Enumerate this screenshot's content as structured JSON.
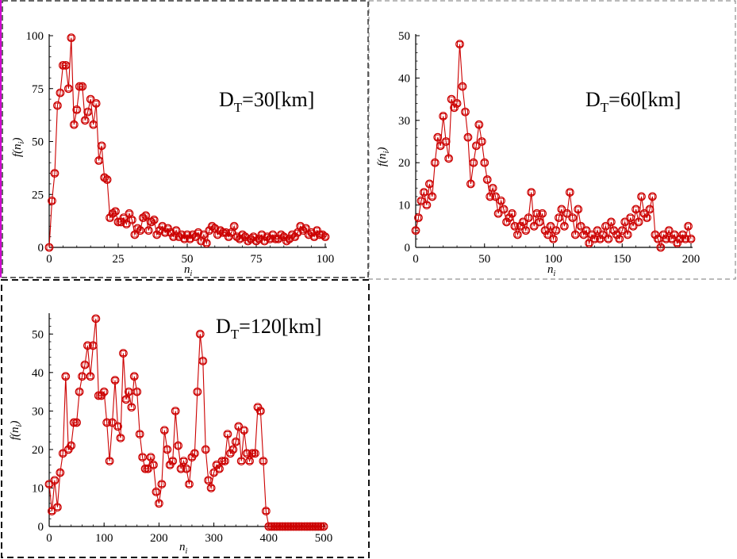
{
  "colors": {
    "series": "#cc0000",
    "frame_dash": "#555555",
    "frame_dash_dark": "#111111",
    "magenta_edge": "#d000d0"
  },
  "chart_data": [
    {
      "type": "line",
      "label_main": "D",
      "label_sub": "T",
      "label_rest": "=30[km]",
      "xlabel": "n",
      "xlabel_sub": "i",
      "ylabel_pre": "f(n",
      "ylabel_sub": "i",
      "ylabel_post": ")",
      "xlim": [
        0,
        100
      ],
      "ylim": [
        0,
        100
      ],
      "xticks": [
        0,
        25,
        50,
        75,
        100
      ],
      "yticks": [
        0,
        25,
        50,
        75,
        100
      ],
      "series": [
        {
          "marker": "circle-square",
          "x": [
            0,
            1,
            2,
            3,
            4,
            5,
            6,
            7,
            8,
            9,
            10,
            11,
            12,
            13,
            14,
            15,
            16,
            17,
            18,
            19,
            20,
            21,
            22,
            23,
            24,
            25,
            26,
            27,
            28,
            29,
            30,
            31,
            32,
            33,
            34,
            35,
            36,
            37,
            38,
            39,
            40,
            41,
            42,
            43,
            44,
            45,
            46,
            47,
            48,
            49,
            50,
            51,
            52,
            53,
            54,
            55,
            56,
            57,
            58,
            59,
            60,
            61,
            62,
            63,
            64,
            65,
            66,
            67,
            68,
            69,
            70,
            71,
            72,
            73,
            74,
            75,
            76,
            77,
            78,
            79,
            80,
            81,
            82,
            83,
            84,
            85,
            86,
            87,
            88,
            89,
            90,
            91,
            92,
            93,
            94,
            95,
            96,
            97,
            98,
            99,
            100
          ],
          "y": [
            0,
            22,
            35,
            67,
            73,
            86,
            86,
            75,
            99,
            58,
            65,
            76,
            76,
            60,
            64,
            70,
            58,
            68,
            41,
            48,
            33,
            32,
            14,
            16,
            17,
            12,
            12,
            14,
            11,
            16,
            13,
            6,
            9,
            8,
            14,
            15,
            8,
            12,
            13,
            6,
            8,
            10,
            7,
            9,
            7,
            5,
            8,
            5,
            6,
            4,
            6,
            4,
            6,
            5,
            7,
            3,
            6,
            2,
            8,
            10,
            9,
            6,
            8,
            7,
            7,
            5,
            7,
            10,
            5,
            4,
            6,
            5,
            3,
            4,
            5,
            3,
            4,
            6,
            3,
            5,
            4,
            6,
            4,
            4,
            6,
            5,
            3,
            4,
            6,
            5,
            7,
            10,
            8,
            9,
            6,
            7,
            5,
            8,
            6,
            6,
            5
          ]
        }
      ]
    },
    {
      "type": "line",
      "label_main": "D",
      "label_sub": "T",
      "label_rest": "=60[km]",
      "xlabel": "n",
      "xlabel_sub": "i",
      "ylabel_pre": "f(n",
      "ylabel_sub": "i",
      "ylabel_post": ")",
      "xlim": [
        0,
        200
      ],
      "ylim": [
        0,
        50
      ],
      "xticks": [
        0,
        50,
        100,
        150,
        200
      ],
      "yticks": [
        0,
        10,
        20,
        30,
        40,
        50
      ],
      "series": [
        {
          "marker": "circle-square",
          "x": [
            0,
            2,
            4,
            6,
            8,
            10,
            12,
            14,
            16,
            18,
            20,
            22,
            24,
            26,
            28,
            30,
            32,
            34,
            36,
            38,
            40,
            42,
            44,
            46,
            48,
            50,
            52,
            54,
            56,
            58,
            60,
            62,
            64,
            66,
            68,
            70,
            72,
            74,
            76,
            78,
            80,
            82,
            84,
            86,
            88,
            90,
            92,
            94,
            96,
            98,
            100,
            102,
            104,
            106,
            108,
            110,
            112,
            114,
            116,
            118,
            120,
            122,
            124,
            126,
            128,
            130,
            132,
            134,
            136,
            138,
            140,
            142,
            144,
            146,
            148,
            150,
            152,
            154,
            156,
            158,
            160,
            162,
            164,
            166,
            168,
            170,
            172,
            174,
            176,
            178,
            180,
            182,
            184,
            186,
            188,
            190,
            192,
            194,
            196,
            198,
            200
          ],
          "y": [
            4,
            7,
            11,
            13,
            10,
            15,
            12,
            20,
            26,
            24,
            31,
            25,
            21,
            35,
            33,
            34,
            48,
            38,
            32,
            26,
            15,
            20,
            24,
            29,
            25,
            20,
            16,
            12,
            14,
            12,
            8,
            11,
            9,
            6,
            7,
            8,
            5,
            3,
            5,
            6,
            4,
            7,
            13,
            5,
            8,
            6,
            8,
            4,
            3,
            5,
            2,
            4,
            7,
            9,
            5,
            8,
            13,
            7,
            3,
            9,
            5,
            3,
            4,
            1,
            3,
            2,
            4,
            2,
            3,
            5,
            2,
            6,
            4,
            3,
            2,
            4,
            6,
            3,
            7,
            5,
            9,
            6,
            12,
            8,
            7,
            9,
            12,
            3,
            2,
            0,
            3,
            2,
            4,
            2,
            3,
            1,
            2,
            3,
            2,
            5,
            2
          ],
          "point_every": 1
        }
      ]
    },
    {
      "type": "line",
      "label_main": "D",
      "label_sub": "T",
      "label_rest": "=120[km]",
      "xlabel": "n",
      "xlabel_sub": "i",
      "ylabel_pre": "f(n",
      "ylabel_sub": "i",
      "ylabel_post": ")",
      "xlim": [
        0,
        500
      ],
      "ylim": [
        0,
        55
      ],
      "xticks": [
        0,
        100,
        200,
        300,
        400,
        500
      ],
      "yticks": [
        0,
        10,
        20,
        30,
        40,
        50
      ],
      "series": [
        {
          "marker": "circle-square",
          "x": [
            0,
            5,
            10,
            15,
            20,
            25,
            30,
            35,
            40,
            45,
            50,
            55,
            60,
            65,
            70,
            75,
            80,
            85,
            90,
            95,
            100,
            105,
            110,
            115,
            120,
            125,
            130,
            135,
            140,
            145,
            150,
            155,
            160,
            165,
            170,
            175,
            180,
            185,
            190,
            195,
            200,
            205,
            210,
            215,
            220,
            225,
            230,
            235,
            240,
            245,
            250,
            255,
            260,
            265,
            270,
            275,
            280,
            285,
            290,
            295,
            300,
            305,
            310,
            315,
            320,
            325,
            330,
            335,
            340,
            345,
            350,
            355,
            360,
            365,
            370,
            375,
            380,
            385,
            390,
            395,
            400,
            405,
            410,
            415,
            420,
            425,
            430,
            435,
            440,
            445,
            450,
            455,
            460,
            465,
            470,
            475,
            480,
            485,
            490,
            495,
            500
          ],
          "y": [
            11,
            4,
            12,
            5,
            14,
            19,
            39,
            20,
            21,
            27,
            27,
            35,
            39,
            42,
            47,
            39,
            47,
            54,
            34,
            34,
            35,
            27,
            17,
            27,
            38,
            26,
            23,
            45,
            33,
            35,
            31,
            39,
            35,
            24,
            18,
            15,
            15,
            18,
            16,
            9,
            6,
            11,
            25,
            20,
            16,
            17,
            30,
            21,
            15,
            17,
            15,
            11,
            18,
            19,
            35,
            50,
            43,
            20,
            12,
            10,
            14,
            16,
            15,
            17,
            17,
            24,
            19,
            20,
            22,
            26,
            17,
            25,
            19,
            17,
            19,
            19,
            31,
            30,
            17,
            4,
            0,
            0,
            0,
            0,
            0,
            0,
            0,
            0,
            0,
            0,
            0,
            0,
            0,
            0,
            0,
            0,
            0,
            0,
            0,
            0,
            0
          ]
        }
      ]
    }
  ]
}
